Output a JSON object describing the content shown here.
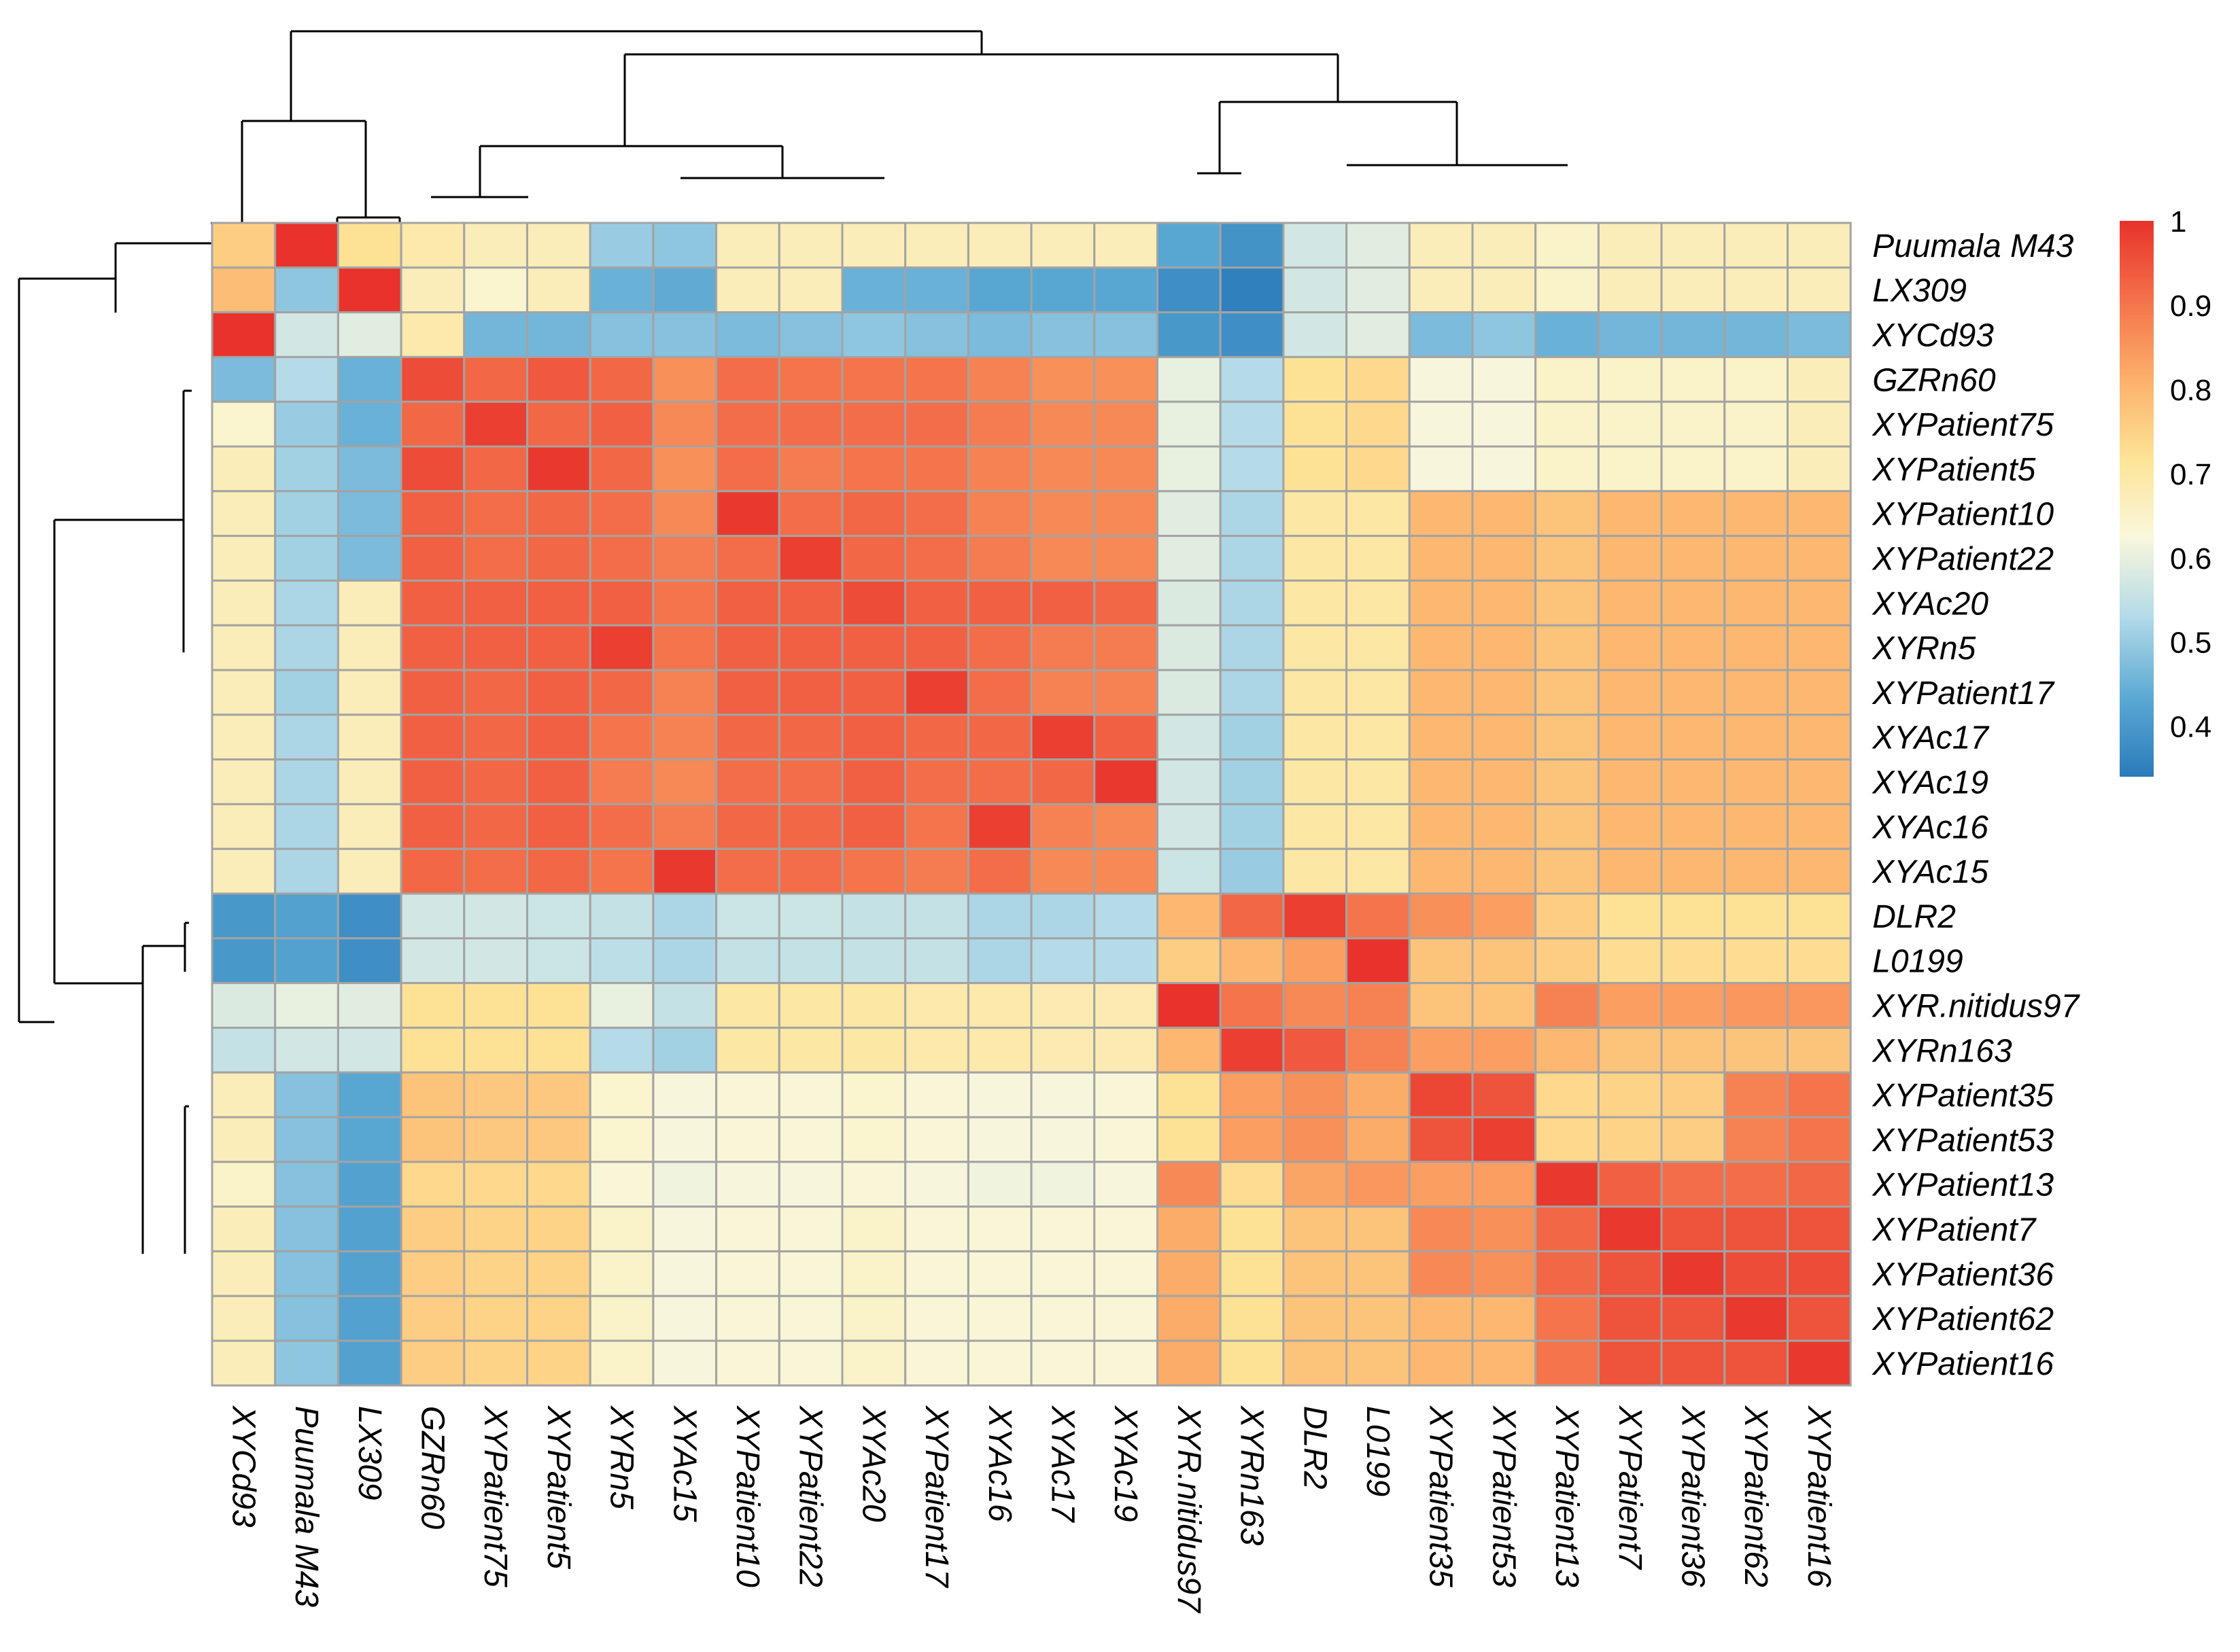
{
  "chart_data": {
    "type": "heatmap",
    "row_labels": [
      "Puumala M43",
      "LX309",
      "XYCd93",
      "GZRn60",
      "XYPatient75",
      "XYPatient5",
      "XYPatient10",
      "XYPatient22",
      "XYAc20",
      "XYRn5",
      "XYPatient17",
      "XYAc17",
      "XYAc19",
      "XYAc16",
      "XYAc15",
      "DLR2",
      "L0199",
      "XYR.nitidus97",
      "XYRn163",
      "XYPatient35",
      "XYPatient53",
      "XYPatient13",
      "XYPatient7",
      "XYPatient36",
      "XYPatient62",
      "XYPatient16"
    ],
    "col_labels": [
      "XYCd93",
      "Puumala M43",
      "LX309",
      "GZRn60",
      "XYPatient75",
      "XYPatient5",
      "XYRn5",
      "XYAc15",
      "XYPatient10",
      "XYPatient22",
      "XYAc20",
      "XYPatient17",
      "XYAc16",
      "XYAc17",
      "XYAc19",
      "XYR.nitidus97",
      "XYRn163",
      "DLR2",
      "L0199",
      "XYPatient35",
      "XYPatient53",
      "XYPatient13",
      "XYPatient7",
      "XYPatient36",
      "XYPatient62",
      "XYPatient16"
    ],
    "values": [
      [
        0.76,
        1.0,
        0.72,
        0.69,
        0.67,
        0.67,
        0.5,
        0.49,
        0.67,
        0.67,
        0.67,
        0.67,
        0.67,
        0.67,
        0.67,
        0.43,
        0.39,
        0.57,
        0.59,
        0.67,
        0.67,
        0.65,
        0.67,
        0.67,
        0.67,
        0.67
      ],
      [
        0.79,
        0.49,
        1.0,
        0.67,
        0.64,
        0.67,
        0.45,
        0.44,
        0.67,
        0.67,
        0.45,
        0.45,
        0.43,
        0.43,
        0.43,
        0.38,
        0.35,
        0.57,
        0.59,
        0.67,
        0.67,
        0.65,
        0.67,
        0.67,
        0.67,
        0.67
      ],
      [
        1.0,
        0.57,
        0.59,
        0.69,
        0.46,
        0.46,
        0.48,
        0.48,
        0.47,
        0.48,
        0.49,
        0.48,
        0.47,
        0.48,
        0.48,
        0.4,
        0.38,
        0.57,
        0.59,
        0.47,
        0.49,
        0.45,
        0.46,
        0.46,
        0.46,
        0.47
      ],
      [
        0.47,
        0.53,
        0.45,
        0.96,
        0.92,
        0.94,
        0.92,
        0.86,
        0.91,
        0.9,
        0.9,
        0.9,
        0.88,
        0.86,
        0.86,
        0.6,
        0.53,
        0.72,
        0.74,
        0.62,
        0.62,
        0.65,
        0.65,
        0.65,
        0.65,
        0.67
      ],
      [
        0.64,
        0.5,
        0.45,
        0.92,
        0.98,
        0.92,
        0.93,
        0.87,
        0.91,
        0.91,
        0.91,
        0.91,
        0.89,
        0.87,
        0.87,
        0.6,
        0.53,
        0.72,
        0.74,
        0.62,
        0.62,
        0.65,
        0.65,
        0.65,
        0.65,
        0.67
      ],
      [
        0.67,
        0.51,
        0.47,
        0.96,
        0.92,
        0.99,
        0.92,
        0.86,
        0.91,
        0.89,
        0.9,
        0.9,
        0.88,
        0.87,
        0.87,
        0.6,
        0.53,
        0.72,
        0.74,
        0.62,
        0.62,
        0.65,
        0.65,
        0.65,
        0.65,
        0.67
      ],
      [
        0.67,
        0.51,
        0.47,
        0.93,
        0.91,
        0.92,
        0.91,
        0.87,
        0.99,
        0.91,
        0.92,
        0.91,
        0.88,
        0.87,
        0.87,
        0.59,
        0.52,
        0.7,
        0.7,
        0.8,
        0.8,
        0.78,
        0.8,
        0.8,
        0.8,
        0.8
      ],
      [
        0.67,
        0.51,
        0.47,
        0.93,
        0.91,
        0.92,
        0.91,
        0.89,
        0.91,
        0.98,
        0.92,
        0.91,
        0.89,
        0.87,
        0.87,
        0.59,
        0.52,
        0.7,
        0.7,
        0.8,
        0.8,
        0.78,
        0.8,
        0.8,
        0.8,
        0.8
      ],
      [
        0.67,
        0.52,
        0.67,
        0.93,
        0.93,
        0.93,
        0.93,
        0.9,
        0.93,
        0.93,
        0.96,
        0.93,
        0.93,
        0.93,
        0.92,
        0.58,
        0.52,
        0.7,
        0.7,
        0.8,
        0.8,
        0.78,
        0.8,
        0.8,
        0.8,
        0.8
      ],
      [
        0.67,
        0.52,
        0.67,
        0.93,
        0.93,
        0.93,
        0.98,
        0.9,
        0.93,
        0.93,
        0.93,
        0.93,
        0.91,
        0.89,
        0.89,
        0.58,
        0.52,
        0.7,
        0.7,
        0.8,
        0.8,
        0.78,
        0.8,
        0.8,
        0.8,
        0.8
      ],
      [
        0.67,
        0.51,
        0.67,
        0.93,
        0.92,
        0.93,
        0.92,
        0.88,
        0.93,
        0.93,
        0.93,
        0.98,
        0.91,
        0.88,
        0.88,
        0.58,
        0.52,
        0.7,
        0.7,
        0.8,
        0.8,
        0.78,
        0.8,
        0.8,
        0.8,
        0.8
      ],
      [
        0.67,
        0.52,
        0.67,
        0.93,
        0.92,
        0.93,
        0.9,
        0.88,
        0.92,
        0.92,
        0.93,
        0.92,
        0.92,
        0.98,
        0.93,
        0.57,
        0.51,
        0.7,
        0.7,
        0.8,
        0.8,
        0.78,
        0.8,
        0.8,
        0.8,
        0.8
      ],
      [
        0.67,
        0.52,
        0.67,
        0.93,
        0.92,
        0.93,
        0.89,
        0.87,
        0.91,
        0.91,
        0.93,
        0.91,
        0.91,
        0.92,
        0.99,
        0.57,
        0.51,
        0.7,
        0.7,
        0.8,
        0.8,
        0.78,
        0.8,
        0.8,
        0.8,
        0.8
      ],
      [
        0.67,
        0.52,
        0.67,
        0.93,
        0.92,
        0.93,
        0.91,
        0.89,
        0.92,
        0.92,
        0.93,
        0.9,
        0.98,
        0.88,
        0.87,
        0.57,
        0.51,
        0.7,
        0.7,
        0.8,
        0.8,
        0.78,
        0.8,
        0.8,
        0.8,
        0.8
      ],
      [
        0.67,
        0.52,
        0.67,
        0.92,
        0.91,
        0.92,
        0.9,
        0.99,
        0.91,
        0.91,
        0.9,
        0.89,
        0.91,
        0.87,
        0.87,
        0.56,
        0.5,
        0.7,
        0.7,
        0.8,
        0.8,
        0.78,
        0.8,
        0.8,
        0.8,
        0.8
      ],
      [
        0.4,
        0.42,
        0.38,
        0.57,
        0.57,
        0.56,
        0.55,
        0.52,
        0.56,
        0.56,
        0.55,
        0.55,
        0.52,
        0.52,
        0.53,
        0.8,
        0.92,
        0.98,
        0.9,
        0.86,
        0.84,
        0.76,
        0.72,
        0.72,
        0.72,
        0.72
      ],
      [
        0.4,
        0.42,
        0.38,
        0.57,
        0.57,
        0.56,
        0.54,
        0.52,
        0.55,
        0.55,
        0.55,
        0.55,
        0.52,
        0.53,
        0.53,
        0.76,
        0.8,
        0.84,
        1.0,
        0.78,
        0.78,
        0.76,
        0.73,
        0.73,
        0.73,
        0.73
      ],
      [
        0.58,
        0.6,
        0.59,
        0.72,
        0.72,
        0.72,
        0.6,
        0.55,
        0.7,
        0.7,
        0.7,
        0.69,
        0.69,
        0.68,
        0.68,
        1.0,
        0.9,
        0.87,
        0.88,
        0.78,
        0.78,
        0.88,
        0.84,
        0.84,
        0.85,
        0.85
      ],
      [
        0.55,
        0.57,
        0.57,
        0.72,
        0.72,
        0.72,
        0.53,
        0.51,
        0.7,
        0.7,
        0.7,
        0.69,
        0.69,
        0.68,
        0.68,
        0.8,
        0.98,
        0.94,
        0.88,
        0.84,
        0.84,
        0.8,
        0.78,
        0.78,
        0.78,
        0.78
      ],
      [
        0.67,
        0.48,
        0.43,
        0.78,
        0.77,
        0.77,
        0.64,
        0.62,
        0.63,
        0.63,
        0.64,
        0.63,
        0.62,
        0.62,
        0.63,
        0.72,
        0.84,
        0.86,
        0.82,
        0.97,
        0.95,
        0.74,
        0.75,
        0.76,
        0.88,
        0.9
      ],
      [
        0.67,
        0.48,
        0.43,
        0.78,
        0.77,
        0.77,
        0.64,
        0.62,
        0.63,
        0.63,
        0.64,
        0.63,
        0.62,
        0.62,
        0.63,
        0.72,
        0.84,
        0.86,
        0.82,
        0.95,
        0.98,
        0.74,
        0.75,
        0.76,
        0.88,
        0.9
      ],
      [
        0.65,
        0.48,
        0.42,
        0.74,
        0.74,
        0.74,
        0.63,
        0.61,
        0.62,
        0.62,
        0.63,
        0.62,
        0.61,
        0.61,
        0.62,
        0.87,
        0.73,
        0.83,
        0.85,
        0.84,
        0.84,
        0.99,
        0.93,
        0.91,
        0.91,
        0.92
      ],
      [
        0.67,
        0.48,
        0.42,
        0.76,
        0.75,
        0.75,
        0.65,
        0.62,
        0.63,
        0.63,
        0.65,
        0.63,
        0.63,
        0.63,
        0.63,
        0.82,
        0.72,
        0.78,
        0.78,
        0.87,
        0.86,
        0.92,
        0.99,
        0.95,
        0.95,
        0.95
      ],
      [
        0.67,
        0.48,
        0.42,
        0.76,
        0.75,
        0.75,
        0.65,
        0.62,
        0.63,
        0.63,
        0.65,
        0.63,
        0.63,
        0.63,
        0.63,
        0.82,
        0.72,
        0.78,
        0.78,
        0.87,
        0.86,
        0.92,
        0.95,
        0.99,
        0.96,
        0.96
      ],
      [
        0.67,
        0.48,
        0.42,
        0.76,
        0.75,
        0.75,
        0.65,
        0.62,
        0.63,
        0.63,
        0.65,
        0.63,
        0.63,
        0.63,
        0.63,
        0.82,
        0.72,
        0.78,
        0.78,
        0.8,
        0.8,
        0.9,
        0.95,
        0.95,
        0.99,
        0.95
      ],
      [
        0.67,
        0.49,
        0.42,
        0.76,
        0.75,
        0.75,
        0.65,
        0.62,
        0.63,
        0.63,
        0.65,
        0.63,
        0.63,
        0.63,
        0.63,
        0.82,
        0.72,
        0.78,
        0.78,
        0.8,
        0.8,
        0.9,
        0.95,
        0.95,
        0.95,
        0.99
      ]
    ],
    "colorbar": {
      "ticks": [
        1,
        0.9,
        0.8,
        0.7,
        0.6,
        0.5,
        0.4
      ],
      "tick_labels": [
        "1",
        "0.9",
        "0.8",
        "0.7",
        "0.6",
        "0.5",
        "0.4"
      ],
      "min": 0.34,
      "max": 1.0
    },
    "colorscale": [
      "#2b7bba",
      "#5aa8d3",
      "#b4dbe8",
      "#f9f7dc",
      "#fde497",
      "#fcb26c",
      "#f4704a",
      "#e8322b"
    ],
    "grid_color": "#a3a3a3",
    "dendrograms": [
      "top",
      "left"
    ]
  }
}
